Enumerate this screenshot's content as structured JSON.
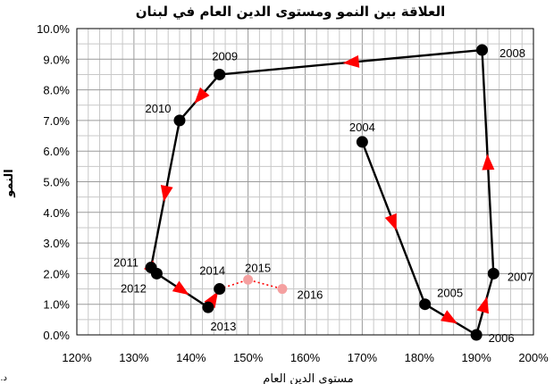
{
  "chart_data": {
    "type": "line",
    "title": "العلاقة بين النمو ومستوى الدين العام في لبنان",
    "xlabel": "مستوى الدين العام",
    "ylabel": "النمو",
    "xlim": [
      120,
      200
    ],
    "ylim": [
      0,
      10
    ],
    "x_ticks": [
      "120%",
      "130%",
      "140%",
      "150%",
      "160%",
      "170%",
      "180%",
      "190%",
      "200%"
    ],
    "y_ticks": [
      "0.0%",
      "1.0%",
      "2.0%",
      "3.0%",
      "4.0%",
      "5.0%",
      "6.0%",
      "7.0%",
      "8.0%",
      "9.0%",
      "10.0%"
    ],
    "grid": true,
    "credit": "د. جاسم عجاقة",
    "series": [
      {
        "style": "solid",
        "color": "#000000",
        "marker_color": "#000000",
        "arrow_color": "#ff0000",
        "points": [
          {
            "label": "2004",
            "x": 170,
            "y": 6.3
          },
          {
            "label": "2005",
            "x": 181,
            "y": 1.0
          },
          {
            "label": "2006",
            "x": 190,
            "y": 0.0
          },
          {
            "label": "2007",
            "x": 193,
            "y": 2.0
          },
          {
            "label": "2008",
            "x": 191,
            "y": 9.3
          },
          {
            "label": "2009",
            "x": 145,
            "y": 8.5
          },
          {
            "label": "2010",
            "x": 138,
            "y": 7.0
          },
          {
            "label": "2011",
            "x": 133,
            "y": 2.2
          },
          {
            "label": "2012",
            "x": 134,
            "y": 2.0
          },
          {
            "label": "2013",
            "x": 143,
            "y": 0.9
          },
          {
            "label": "2014",
            "x": 145,
            "y": 1.5
          }
        ]
      },
      {
        "style": "dotted",
        "color": "#ff0000",
        "marker_color": "#f4a0a0",
        "points": [
          {
            "label": "2014",
            "x": 145,
            "y": 1.5
          },
          {
            "label": "2015",
            "x": 150,
            "y": 1.8
          },
          {
            "label": "2016",
            "x": 156,
            "y": 1.5
          }
        ]
      }
    ]
  }
}
